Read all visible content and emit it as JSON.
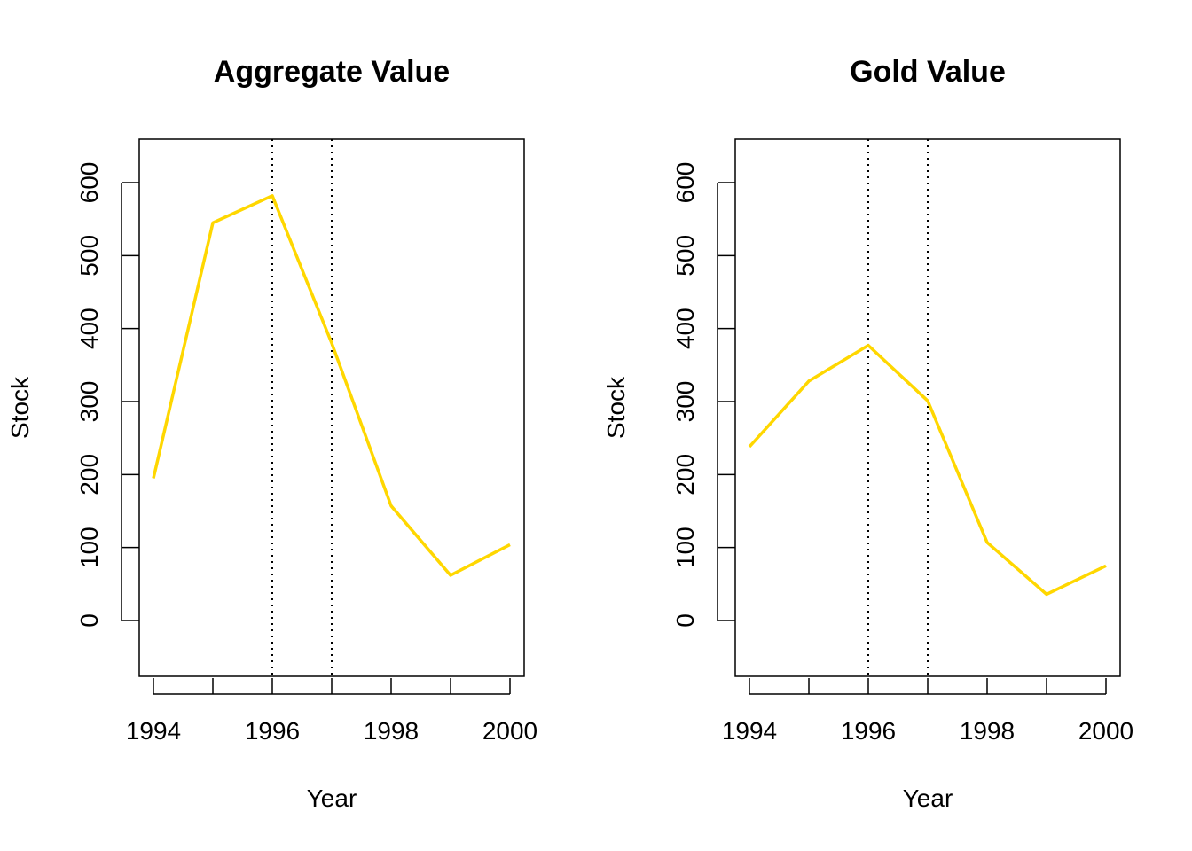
{
  "colors": {
    "line": "#FFD700",
    "axis": "#000000",
    "vline": "#000000"
  },
  "chart_data": [
    {
      "type": "line",
      "title": "Aggregate Value",
      "xlabel": "Year",
      "ylabel": "Stock",
      "x": [
        1994,
        1995,
        1996,
        1997,
        1998,
        1999,
        2000
      ],
      "series": [
        {
          "values": [
            195,
            545,
            582,
            380,
            157,
            62,
            104
          ]
        }
      ],
      "xlim": [
        1994,
        2000
      ],
      "ylim": [
        -75,
        660
      ],
      "xticks": [
        "1994",
        "1996",
        "1998",
        "2000"
      ],
      "yticks": [
        "0",
        "100",
        "200",
        "300",
        "400",
        "500",
        "600"
      ],
      "vlines": [
        1996,
        1997
      ],
      "grid": false
    },
    {
      "type": "line",
      "title": "Gold Value",
      "xlabel": "Year",
      "ylabel": "Stock",
      "x": [
        1994,
        1995,
        1996,
        1997,
        1998,
        1999,
        2000
      ],
      "series": [
        {
          "values": [
            238,
            328,
            377,
            301,
            107,
            36,
            75
          ]
        }
      ],
      "xlim": [
        1994,
        2000
      ],
      "ylim": [
        -75,
        660
      ],
      "xticks": [
        "1994",
        "1996",
        "1998",
        "2000"
      ],
      "yticks": [
        "0",
        "100",
        "200",
        "300",
        "400",
        "500",
        "600"
      ],
      "vlines": [
        1996,
        1997
      ],
      "grid": false
    }
  ]
}
